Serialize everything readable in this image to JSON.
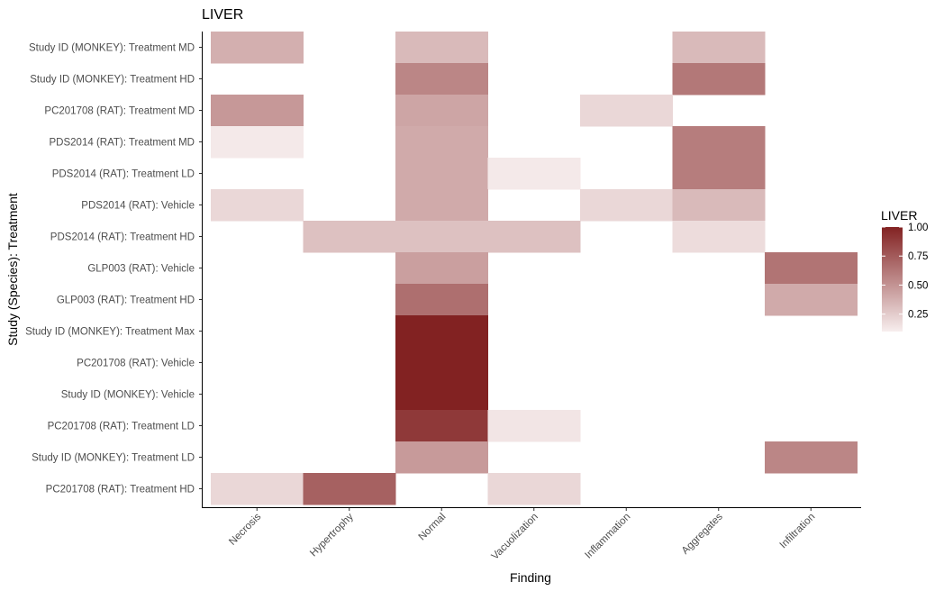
{
  "chart_data": {
    "type": "heatmap",
    "title": "LIVER",
    "xlabel": "Finding",
    "ylabel": "Study (Species): Treatment",
    "x_categories": [
      "Necrosis",
      "Hypertrophy",
      "Normal",
      "Vacuolization",
      "Inflammation",
      "Aggregates",
      "Infiltration"
    ],
    "y_categories": [
      "Study ID (MONKEY): Treatment MD",
      "Study ID (MONKEY): Treatment HD",
      "PC201708 (RAT): Treatment MD",
      "PDS2014 (RAT): Treatment MD",
      "PDS2014 (RAT): Treatment LD",
      "PDS2014 (RAT): Vehicle",
      "PDS2014 (RAT): Treatment HD",
      "GLP003 (RAT): Vehicle",
      "GLP003 (RAT): Treatment HD",
      "Study ID (MONKEY): Treatment Max",
      "PC201708 (RAT): Vehicle",
      "Study ID (MONKEY): Vehicle",
      "PC201708 (RAT): Treatment LD",
      "Study ID (MONKEY): Treatment LD",
      "PC201708 (RAT): Treatment HD"
    ],
    "values": [
      [
        0.38,
        null,
        0.33,
        null,
        null,
        0.33,
        null
      ],
      [
        null,
        null,
        0.56,
        null,
        null,
        0.62,
        null
      ],
      [
        0.48,
        null,
        0.42,
        null,
        0.2,
        null,
        null
      ],
      [
        0.12,
        null,
        0.4,
        null,
        null,
        0.6,
        null
      ],
      [
        null,
        null,
        0.4,
        0.12,
        null,
        0.6,
        null
      ],
      [
        0.2,
        null,
        0.4,
        null,
        0.2,
        0.33,
        null
      ],
      [
        null,
        0.3,
        0.3,
        0.3,
        null,
        0.18,
        null
      ],
      [
        null,
        null,
        0.45,
        null,
        null,
        null,
        0.64
      ],
      [
        null,
        null,
        0.66,
        null,
        null,
        null,
        0.4
      ],
      [
        null,
        null,
        1.0,
        null,
        null,
        null,
        null
      ],
      [
        null,
        null,
        1.0,
        null,
        null,
        null,
        null
      ],
      [
        null,
        null,
        1.0,
        null,
        null,
        null,
        null
      ],
      [
        null,
        null,
        0.9,
        0.14,
        null,
        null,
        null
      ],
      [
        null,
        null,
        0.47,
        null,
        null,
        null,
        0.56
      ],
      [
        0.2,
        0.72,
        null,
        0.2,
        null,
        null,
        null
      ]
    ],
    "color_scale": {
      "low": "#f7eeee",
      "high": "#822222",
      "range": [
        0.1,
        1.0
      ]
    },
    "legend": {
      "title": "LIVER",
      "ticks": [
        "1.00",
        "0.75",
        "0.50",
        "0.25"
      ],
      "tick_values": [
        1.0,
        0.75,
        0.5,
        0.25
      ],
      "position": "right"
    },
    "grid": false
  }
}
